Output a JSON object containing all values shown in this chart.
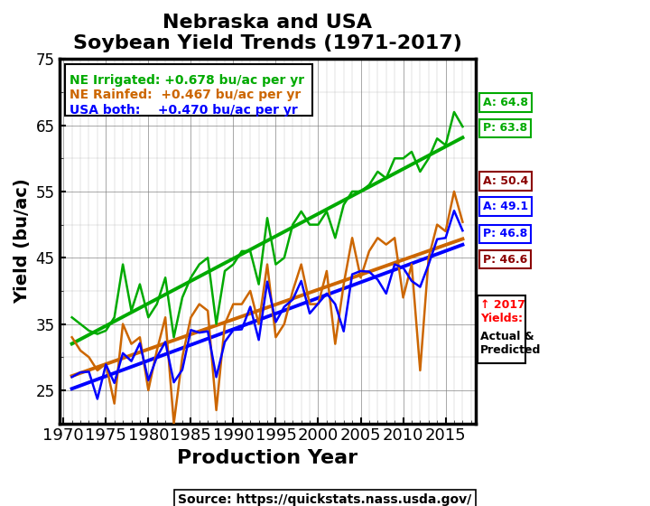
{
  "title": "Nebraska and USA\nSoybean Yield Trends (1971-2017)",
  "xlabel": "Production Year",
  "ylabel": "Yield (bu/ac)",
  "source": "Source: https://quickstats.nass.usda.gov/",
  "years": [
    1971,
    1972,
    1973,
    1974,
    1975,
    1976,
    1977,
    1978,
    1979,
    1980,
    1981,
    1982,
    1983,
    1984,
    1985,
    1986,
    1987,
    1988,
    1989,
    1990,
    1991,
    1992,
    1993,
    1994,
    1995,
    1996,
    1997,
    1998,
    1999,
    2000,
    2001,
    2002,
    2003,
    2004,
    2005,
    2006,
    2007,
    2008,
    2009,
    2010,
    2011,
    2012,
    2013,
    2014,
    2015,
    2016,
    2017
  ],
  "ne_irrigated": [
    36.0,
    35.0,
    34.0,
    33.5,
    34.0,
    36.0,
    44.0,
    37.0,
    41.0,
    36.0,
    38.0,
    42.0,
    33.0,
    39.0,
    42.0,
    44.0,
    45.0,
    35.0,
    43.0,
    44.0,
    46.0,
    46.0,
    41.0,
    51.0,
    44.0,
    45.0,
    50.0,
    52.0,
    50.0,
    50.0,
    52.0,
    48.0,
    53.0,
    55.0,
    55.0,
    56.0,
    58.0,
    57.0,
    60.0,
    60.0,
    61.0,
    58.0,
    60.0,
    63.0,
    62.0,
    67.0,
    64.8
  ],
  "ne_rainfed": [
    33.0,
    31.0,
    30.0,
    28.0,
    29.0,
    23.0,
    35.0,
    32.0,
    33.0,
    25.0,
    31.0,
    36.0,
    20.0,
    30.0,
    36.0,
    38.0,
    37.0,
    22.0,
    35.0,
    38.0,
    38.0,
    40.0,
    35.0,
    44.0,
    33.0,
    35.0,
    40.0,
    44.0,
    38.0,
    38.0,
    43.0,
    32.0,
    41.0,
    48.0,
    42.0,
    46.0,
    48.0,
    47.0,
    48.0,
    39.0,
    44.0,
    28.0,
    45.0,
    50.0,
    49.0,
    55.0,
    50.4
  ],
  "usa": [
    27.0,
    27.7,
    27.8,
    23.7,
    28.9,
    26.1,
    30.6,
    29.4,
    32.1,
    26.5,
    30.0,
    32.3,
    26.2,
    28.1,
    34.1,
    33.7,
    33.9,
    27.0,
    32.3,
    34.1,
    34.2,
    37.6,
    32.6,
    41.4,
    35.3,
    37.6,
    38.7,
    41.5,
    36.6,
    38.1,
    39.6,
    38.0,
    33.9,
    42.5,
    43.0,
    42.9,
    41.7,
    39.6,
    44.0,
    43.5,
    41.5,
    40.6,
    44.0,
    47.8,
    48.0,
    52.1,
    49.1
  ],
  "ne_irr_color": "#00aa00",
  "ne_rf_color": "#cc6600",
  "usa_color": "#0000ff",
  "dark_red": "#8B0000",
  "red_color": "#ff0000",
  "ylim": [
    20,
    75
  ],
  "xlim": [
    1969.5,
    2018.5
  ],
  "yticks": [
    25,
    35,
    45,
    55,
    65,
    75
  ],
  "xticks": [
    1970,
    1975,
    1980,
    1985,
    1990,
    1995,
    2000,
    2005,
    2010,
    2015
  ]
}
